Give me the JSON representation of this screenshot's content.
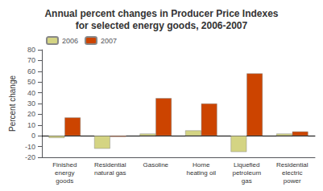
{
  "chart_data": {
    "type": "bar",
    "title": "Annual percent changes in Producer Price Indexes\nfor selected energy goods, 2006-2007",
    "categories": [
      "Finished\nenergy\ngoods",
      "Residential\nnatural gas",
      "Gasoline",
      "Home\nheating oil",
      "Liquefied\npetroleum\ngas",
      "Residential\nelectric\npower"
    ],
    "series": [
      {
        "name": "2006",
        "color": "#d4d483",
        "values": [
          -2,
          -12,
          2,
          5,
          -15,
          2
        ]
      },
      {
        "name": "2007",
        "color": "#cc4400",
        "values": [
          17,
          -1,
          35,
          30,
          58,
          4
        ]
      }
    ],
    "ylabel": "Percent change",
    "ylim": [
      -20,
      80
    ],
    "yticks": [
      -20,
      -10,
      0,
      10,
      20,
      30,
      40,
      50,
      60,
      70,
      80
    ],
    "grid": false,
    "legend": "upper left"
  }
}
